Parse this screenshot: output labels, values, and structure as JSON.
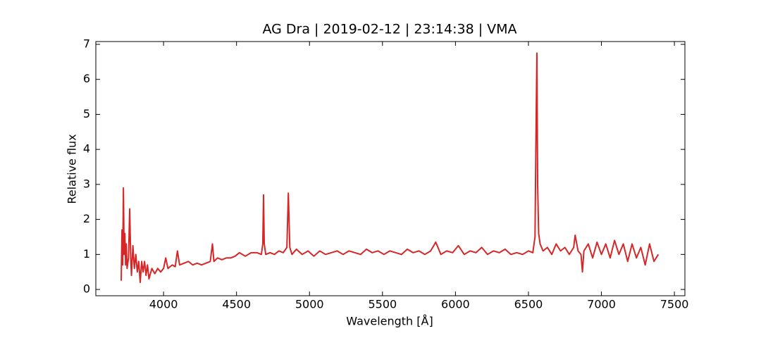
{
  "chart_data": {
    "type": "line",
    "title": "AG Dra | 2019-02-12 | 23:14:38 | VMA",
    "x_label": "Wavelength [Å]",
    "y_label": "Relative flux",
    "color": "#d62728",
    "x": [
      3710,
      3715,
      3720,
      3725,
      3730,
      3735,
      3740,
      3745,
      3750,
      3760,
      3768,
      3775,
      3780,
      3790,
      3800,
      3810,
      3820,
      3830,
      3840,
      3850,
      3860,
      3870,
      3880,
      3890,
      3900,
      3920,
      3940,
      3960,
      3980,
      4000,
      4015,
      4030,
      4060,
      4080,
      4095,
      4110,
      4140,
      4170,
      4200,
      4230,
      4260,
      4290,
      4320,
      4335,
      4345,
      4370,
      4400,
      4430,
      4460,
      4490,
      4520,
      4560,
      4600,
      4640,
      4670,
      4680,
      4685,
      4690,
      4700,
      4730,
      4760,
      4790,
      4820,
      4845,
      4855,
      4865,
      4880,
      4910,
      4950,
      4990,
      5030,
      5070,
      5110,
      5150,
      5190,
      5230,
      5270,
      5310,
      5350,
      5390,
      5430,
      5470,
      5510,
      5550,
      5590,
      5630,
      5670,
      5710,
      5750,
      5790,
      5830,
      5865,
      5900,
      5940,
      5980,
      6020,
      6060,
      6100,
      6140,
      6180,
      6220,
      6260,
      6300,
      6340,
      6380,
      6420,
      6460,
      6500,
      6530,
      6545,
      6552,
      6558,
      6563,
      6570,
      6580,
      6600,
      6630,
      6660,
      6690,
      6720,
      6750,
      6780,
      6810,
      6820,
      6840,
      6860,
      6870,
      6880,
      6910,
      6940,
      6970,
      7000,
      7030,
      7060,
      7090,
      7120,
      7150,
      7180,
      7210,
      7240,
      7270,
      7300,
      7330,
      7360,
      7390
    ],
    "values": [
      0.25,
      1.7,
      0.7,
      2.9,
      1.0,
      1.6,
      0.7,
      1.3,
      0.6,
      0.9,
      2.3,
      0.9,
      0.4,
      1.25,
      0.6,
      1.0,
      0.5,
      0.8,
      0.2,
      0.8,
      0.5,
      0.8,
      0.4,
      0.7,
      0.3,
      0.6,
      0.45,
      0.6,
      0.5,
      0.6,
      0.9,
      0.6,
      0.7,
      0.65,
      1.1,
      0.7,
      0.75,
      0.8,
      0.7,
      0.75,
      0.7,
      0.75,
      0.8,
      1.3,
      0.8,
      0.9,
      0.85,
      0.9,
      0.9,
      0.95,
      1.05,
      0.95,
      1.05,
      1.05,
      1.0,
      1.3,
      2.7,
      1.3,
      1.0,
      1.05,
      1.0,
      1.1,
      1.05,
      1.2,
      2.75,
      1.2,
      1.0,
      1.15,
      1.0,
      1.1,
      0.95,
      1.1,
      1.0,
      1.05,
      1.1,
      1.0,
      1.1,
      1.05,
      1.0,
      1.15,
      1.05,
      1.1,
      1.0,
      1.1,
      1.05,
      1.0,
      1.15,
      1.05,
      1.1,
      1.0,
      1.1,
      1.35,
      1.0,
      1.1,
      1.05,
      1.25,
      1.0,
      1.1,
      1.05,
      1.2,
      1.0,
      1.1,
      1.05,
      1.15,
      1.0,
      1.05,
      1.0,
      1.1,
      1.05,
      1.5,
      4.5,
      6.75,
      3.0,
      1.6,
      1.3,
      1.1,
      1.2,
      1.0,
      1.3,
      1.1,
      1.2,
      1.0,
      1.2,
      1.55,
      1.1,
      1.0,
      0.5,
      1.1,
      1.3,
      0.9,
      1.35,
      1.0,
      1.3,
      0.9,
      1.4,
      1.0,
      1.3,
      0.8,
      1.3,
      0.9,
      1.2,
      0.7,
      1.3,
      0.8,
      1.0
    ],
    "xlim": [
      3536,
      7572
    ],
    "ylim": [
      -0.18,
      7.08
    ],
    "xticks": [
      4000,
      4500,
      5000,
      5500,
      6000,
      6500,
      7000,
      7500
    ],
    "yticks": [
      0,
      1,
      2,
      3,
      4,
      5,
      6,
      7
    ]
  }
}
